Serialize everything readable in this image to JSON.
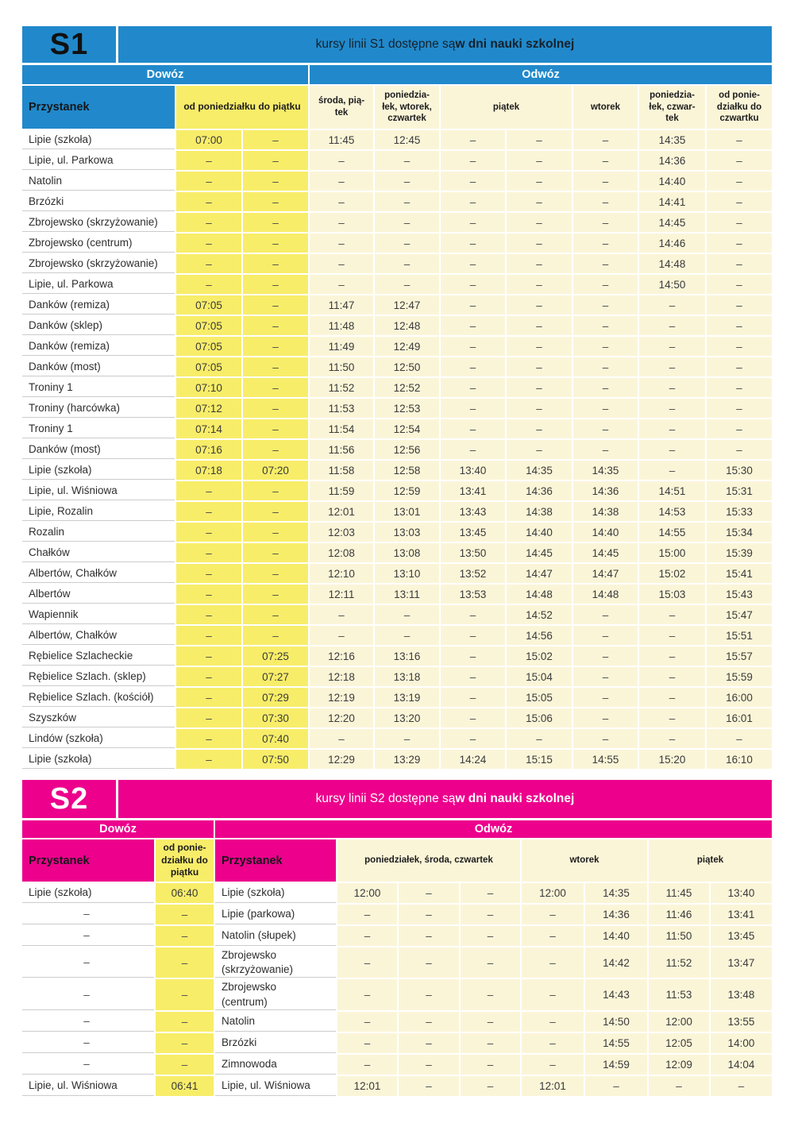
{
  "colors": {
    "s1_accent": "#2189cb",
    "s2_accent": "#ec008c",
    "highlight_yellow": "#f8ed69",
    "time_cell_cream": "#fbf5d8"
  },
  "s1": {
    "line": "S1",
    "title_prefix": "kursy linii S1 dostępne są ",
    "title_bold": "w dni nauki szkolnej",
    "dowoz_label": "Dowóz",
    "odwoz_label": "Odwóz",
    "stop_header": "Przystanek",
    "dowoz_col_header": "od poniedziałku do piątku",
    "odwoz_col_headers": [
      "środa, pią-\ntek",
      "poniedzia-\nłek, wtorek,\nczwartek",
      "piątek",
      "wtorek",
      "poniedzia-\nłek, czwar-\ntek",
      "od ponie-\ndziałku do\nczwartku"
    ],
    "rows": [
      {
        "stop": "Lipie (szkoła)",
        "dowoz": [
          "07:00",
          "–"
        ],
        "odwoz": [
          "11:45",
          "12:45",
          "–",
          "–",
          "–",
          "14:35",
          "–"
        ]
      },
      {
        "stop": "Lipie, ul. Parkowa",
        "dowoz": [
          "–",
          "–"
        ],
        "odwoz": [
          "–",
          "–",
          "–",
          "–",
          "–",
          "14:36",
          "–"
        ]
      },
      {
        "stop": "Natolin",
        "dowoz": [
          "–",
          "–"
        ],
        "odwoz": [
          "–",
          "–",
          "–",
          "–",
          "–",
          "14:40",
          "–"
        ]
      },
      {
        "stop": "Brzózki",
        "dowoz": [
          "–",
          "–"
        ],
        "odwoz": [
          "–",
          "–",
          "–",
          "–",
          "–",
          "14:41",
          "–"
        ]
      },
      {
        "stop": "Zbrojewsko (skrzyżowanie)",
        "dowoz": [
          "–",
          "–"
        ],
        "odwoz": [
          "–",
          "–",
          "–",
          "–",
          "–",
          "14:45",
          "–"
        ]
      },
      {
        "stop": "Zbrojewsko (centrum)",
        "dowoz": [
          "–",
          "–"
        ],
        "odwoz": [
          "–",
          "–",
          "–",
          "–",
          "–",
          "14:46",
          "–"
        ]
      },
      {
        "stop": "Zbrojewsko (skrzyżowanie)",
        "dowoz": [
          "–",
          "–"
        ],
        "odwoz": [
          "–",
          "–",
          "–",
          "–",
          "–",
          "14:48",
          "–"
        ]
      },
      {
        "stop": "Lipie, ul. Parkowa",
        "dowoz": [
          "–",
          "–"
        ],
        "odwoz": [
          "–",
          "–",
          "–",
          "–",
          "–",
          "14:50",
          "–"
        ]
      },
      {
        "stop": "Danków (remiza)",
        "dowoz": [
          "07:05",
          "–"
        ],
        "odwoz": [
          "11:47",
          "12:47",
          "–",
          "–",
          "–",
          "–",
          "–"
        ]
      },
      {
        "stop": "Danków (sklep)",
        "dowoz": [
          "07:05",
          "–"
        ],
        "odwoz": [
          "11:48",
          "12:48",
          "–",
          "–",
          "–",
          "–",
          "–"
        ]
      },
      {
        "stop": "Danków (remiza)",
        "dowoz": [
          "07:05",
          "–"
        ],
        "odwoz": [
          "11:49",
          "12:49",
          "–",
          "–",
          "–",
          "–",
          "–"
        ]
      },
      {
        "stop": "Danków (most)",
        "dowoz": [
          "07:05",
          "–"
        ],
        "odwoz": [
          "11:50",
          "12:50",
          "–",
          "–",
          "–",
          "–",
          "–"
        ]
      },
      {
        "stop": "Troniny 1",
        "dowoz": [
          "07:10",
          "–"
        ],
        "odwoz": [
          "11:52",
          "12:52",
          "–",
          "–",
          "–",
          "–",
          "–"
        ]
      },
      {
        "stop": "Troniny (harcówka)",
        "dowoz": [
          "07:12",
          "–"
        ],
        "odwoz": [
          "11:53",
          "12:53",
          "–",
          "–",
          "–",
          "–",
          "–"
        ]
      },
      {
        "stop": "Troniny 1",
        "dowoz": [
          "07:14",
          "–"
        ],
        "odwoz": [
          "11:54",
          "12:54",
          "–",
          "–",
          "–",
          "–",
          "–"
        ]
      },
      {
        "stop": "Danków (most)",
        "dowoz": [
          "07:16",
          "–"
        ],
        "odwoz": [
          "11:56",
          "12:56",
          "–",
          "–",
          "–",
          "–",
          "–"
        ]
      },
      {
        "stop": "Lipie (szkoła)",
        "dowoz": [
          "07:18",
          "07:20"
        ],
        "odwoz": [
          "11:58",
          "12:58",
          "13:40",
          "14:35",
          "14:35",
          "–",
          "15:30"
        ]
      },
      {
        "stop": "Lipie, ul. Wiśniowa",
        "dowoz": [
          "–",
          "–"
        ],
        "odwoz": [
          "11:59",
          "12:59",
          "13:41",
          "14:36",
          "14:36",
          "14:51",
          "15:31"
        ]
      },
      {
        "stop": "Lipie, Rozalin",
        "dowoz": [
          "–",
          "–"
        ],
        "odwoz": [
          "12:01",
          "13:01",
          "13:43",
          "14:38",
          "14:38",
          "14:53",
          "15:33"
        ]
      },
      {
        "stop": "Rozalin",
        "dowoz": [
          "–",
          "–"
        ],
        "odwoz": [
          "12:03",
          "13:03",
          "13:45",
          "14:40",
          "14:40",
          "14:55",
          "15:34"
        ]
      },
      {
        "stop": "Chałków",
        "dowoz": [
          "–",
          "–"
        ],
        "odwoz": [
          "12:08",
          "13:08",
          "13:50",
          "14:45",
          "14:45",
          "15:00",
          "15:39"
        ]
      },
      {
        "stop": "Albertów, Chałków",
        "dowoz": [
          "–",
          "–"
        ],
        "odwoz": [
          "12:10",
          "13:10",
          "13:52",
          "14:47",
          "14:47",
          "15:02",
          "15:41"
        ]
      },
      {
        "stop": "Albertów",
        "dowoz": [
          "–",
          "–"
        ],
        "odwoz": [
          "12:11",
          "13:11",
          "13:53",
          "14:48",
          "14:48",
          "15:03",
          "15:43"
        ]
      },
      {
        "stop": "Wapiennik",
        "dowoz": [
          "–",
          "–"
        ],
        "odwoz": [
          "–",
          "–",
          "–",
          "14:52",
          "–",
          "–",
          "15:47"
        ]
      },
      {
        "stop": "Albertów, Chałków",
        "dowoz": [
          "–",
          "–"
        ],
        "odwoz": [
          "–",
          "–",
          "–",
          "14:56",
          "–",
          "–",
          "15:51"
        ]
      },
      {
        "stop": "Rębielice Szlacheckie",
        "dowoz": [
          "–",
          "07:25"
        ],
        "odwoz": [
          "12:16",
          "13:16",
          "–",
          "15:02",
          "–",
          "–",
          "15:57"
        ]
      },
      {
        "stop": "Rębielice Szlach. (sklep)",
        "dowoz": [
          "–",
          "07:27"
        ],
        "odwoz": [
          "12:18",
          "13:18",
          "–",
          "15:04",
          "–",
          "–",
          "15:59"
        ]
      },
      {
        "stop": "Rębielice Szlach. (kościół)",
        "dowoz": [
          "–",
          "07:29"
        ],
        "odwoz": [
          "12:19",
          "13:19",
          "–",
          "15:05",
          "–",
          "–",
          "16:00"
        ]
      },
      {
        "stop": "Szyszków",
        "dowoz": [
          "–",
          "07:30"
        ],
        "odwoz": [
          "12:20",
          "13:20",
          "–",
          "15:06",
          "–",
          "–",
          "16:01"
        ]
      },
      {
        "stop": "Lindów (szkoła)",
        "dowoz": [
          "–",
          "07:40"
        ],
        "odwoz": [
          "–",
          "–",
          "–",
          "–",
          "–",
          "–",
          "–"
        ]
      },
      {
        "stop": "Lipie (szkoła)",
        "dowoz": [
          "–",
          "07:50"
        ],
        "odwoz": [
          "12:29",
          "13:29",
          "14:24",
          "15:15",
          "14:55",
          "15:20",
          "16:10"
        ]
      }
    ]
  },
  "s2": {
    "line": "S2",
    "title_prefix": "kursy linii S2 dostępne są ",
    "title_bold": "w dni nauki szkolnej",
    "dowoz_label": "Dowóz",
    "odwoz_label": "Odwóz",
    "stop_header_dowoz": "Przystanek",
    "stop_header_odwoz": "Przystanek",
    "dowoz_col_header": "od ponie-\ndziałku do\npiątku",
    "odwoz_col_headers": [
      "poniedziałek, środa, czwartek",
      "wtorek",
      "piątek"
    ],
    "rows": [
      {
        "stop1": "Lipie (szkoła)",
        "dowoz": "06:40",
        "stop2": "Lipie (szkoła)",
        "odwoz": [
          "12:00",
          "–",
          "–",
          "12:00",
          "14:35",
          "11:45",
          "13:40"
        ]
      },
      {
        "stop1": "–",
        "dowoz": "–",
        "stop2": "Lipie (parkowa)",
        "odwoz": [
          "–",
          "–",
          "–",
          "–",
          "14:36",
          "11:46",
          "13:41"
        ]
      },
      {
        "stop1": "–",
        "dowoz": "–",
        "stop2": "Natolin (słupek)",
        "odwoz": [
          "–",
          "–",
          "–",
          "–",
          "14:40",
          "11:50",
          "13:45"
        ]
      },
      {
        "stop1": "–",
        "dowoz": "–",
        "stop2": "Zbrojewsko\n(skrzyżowanie)",
        "odwoz": [
          "–",
          "–",
          "–",
          "–",
          "14:42",
          "11:52",
          "13:47"
        ]
      },
      {
        "stop1": "–",
        "dowoz": "–",
        "stop2": "Zbrojewsko\n(centrum)",
        "odwoz": [
          "–",
          "–",
          "–",
          "–",
          "14:43",
          "11:53",
          "13:48"
        ]
      },
      {
        "stop1": "–",
        "dowoz": "–",
        "stop2": "Natolin",
        "odwoz": [
          "–",
          "–",
          "–",
          "–",
          "14:50",
          "12:00",
          "13:55"
        ]
      },
      {
        "stop1": "–",
        "dowoz": "–",
        "stop2": "Brzózki",
        "odwoz": [
          "–",
          "–",
          "–",
          "–",
          "14:55",
          "12:05",
          "14:00"
        ]
      },
      {
        "stop1": "–",
        "dowoz": "–",
        "stop2": "Zimnowoda",
        "odwoz": [
          "–",
          "–",
          "–",
          "–",
          "14:59",
          "12:09",
          "14:04"
        ]
      },
      {
        "stop1": "Lipie, ul. Wiśniowa",
        "dowoz": "06:41",
        "stop2": "Lipie, ul. Wiśniowa",
        "odwoz": [
          "12:01",
          "–",
          "–",
          "12:01",
          "–",
          "–",
          "–"
        ]
      }
    ]
  }
}
